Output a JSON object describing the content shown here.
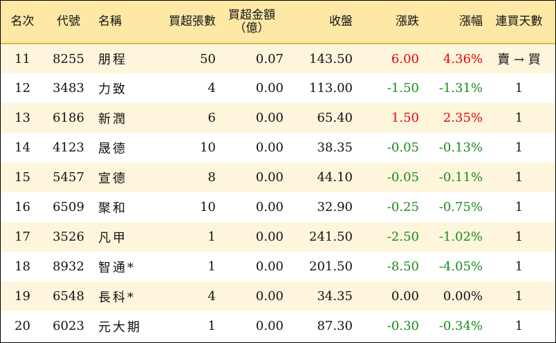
{
  "headers": {
    "rank": "名次",
    "code": "代號",
    "name": "名稱",
    "net_buy_lots": "買超張數",
    "net_buy_amount_line1": "買超金額",
    "net_buy_amount_line2": "（億）",
    "close": "收盤",
    "change": "漲跌",
    "change_pct": "漲幅",
    "consecutive_days": "連買天數"
  },
  "rows": [
    {
      "rank": "11",
      "code": "8255",
      "name": "朋程",
      "lots": "50",
      "amount": "0.07",
      "close": "143.50",
      "change": "6.00",
      "change_pct": "4.36%",
      "days": "賣 → 買",
      "trend": "up"
    },
    {
      "rank": "12",
      "code": "3483",
      "name": "力致",
      "lots": "4",
      "amount": "0.00",
      "close": "113.00",
      "change": "-1.50",
      "change_pct": "-1.31%",
      "days": "1",
      "trend": "down"
    },
    {
      "rank": "13",
      "code": "6186",
      "name": "新潤",
      "lots": "6",
      "amount": "0.00",
      "close": "65.40",
      "change": "1.50",
      "change_pct": "2.35%",
      "days": "1",
      "trend": "up"
    },
    {
      "rank": "14",
      "code": "4123",
      "name": "晟德",
      "lots": "10",
      "amount": "0.00",
      "close": "38.35",
      "change": "-0.05",
      "change_pct": "-0.13%",
      "days": "1",
      "trend": "down"
    },
    {
      "rank": "15",
      "code": "5457",
      "name": "宣德",
      "lots": "8",
      "amount": "0.00",
      "close": "44.10",
      "change": "-0.05",
      "change_pct": "-0.11%",
      "days": "1",
      "trend": "down"
    },
    {
      "rank": "16",
      "code": "6509",
      "name": "聚和",
      "lots": "10",
      "amount": "0.00",
      "close": "32.90",
      "change": "-0.25",
      "change_pct": "-0.75%",
      "days": "1",
      "trend": "down"
    },
    {
      "rank": "17",
      "code": "3526",
      "name": "凡甲",
      "lots": "1",
      "amount": "0.00",
      "close": "241.50",
      "change": "-2.50",
      "change_pct": "-1.02%",
      "days": "1",
      "trend": "down"
    },
    {
      "rank": "18",
      "code": "8932",
      "name": "智通*",
      "lots": "1",
      "amount": "0.00",
      "close": "201.50",
      "change": "-8.50",
      "change_pct": "-4.05%",
      "days": "1",
      "trend": "down"
    },
    {
      "rank": "19",
      "code": "6548",
      "name": "長科*",
      "lots": "4",
      "amount": "0.00",
      "close": "34.35",
      "change": "0.00",
      "change_pct": "0.00%",
      "days": "1",
      "trend": "flat"
    },
    {
      "rank": "20",
      "code": "6023",
      "name": "元大期",
      "lots": "1",
      "amount": "0.00",
      "close": "87.30",
      "change": "-0.30",
      "change_pct": "-0.34%",
      "days": "1",
      "trend": "down"
    }
  ],
  "colors": {
    "up": "#e8000b",
    "down": "#1a8a1a",
    "flat": "#111111",
    "header_bg": "#fde8a6",
    "odd_row_bg": "#fdf6dc"
  }
}
